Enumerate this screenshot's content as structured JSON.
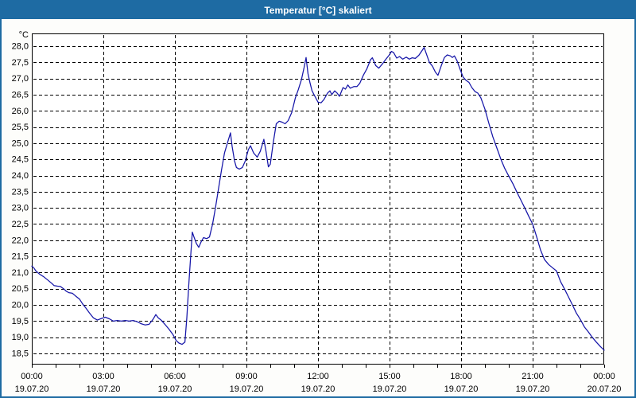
{
  "window": {
    "title": "Temperatur [°C] skaliert"
  },
  "colors": {
    "titlebar_bg": "#1e6ba3",
    "window_border": "#1e6ba3",
    "title_text": "#ffffff",
    "content_bg": "#fdfdfb",
    "plot_bg": "#ffffff",
    "grid": "#000000",
    "axis": "#000000",
    "tick_text": "#000000",
    "line": "#1515a8"
  },
  "chart_data": {
    "type": "line",
    "title": "Temperatur [°C] skaliert",
    "y_unit": "°C",
    "grid": "dashed",
    "legend": "none",
    "y_axis": {
      "max": 28.0,
      "min": 18.5,
      "step": 0.5,
      "tick_labels": [
        "28,0",
        "27,5",
        "27,0",
        "26,5",
        "26,0",
        "25,5",
        "25,0",
        "24,5",
        "24,0",
        "23,5",
        "23,0",
        "22,5",
        "22,0",
        "21,5",
        "21,0",
        "20,5",
        "20,0",
        "19,5",
        "19,0",
        "18,5"
      ]
    },
    "x_axis": {
      "min_hour": 0,
      "max_hour": 24,
      "major_step_hours": 3,
      "minor_step_hours": 1,
      "ticks": [
        {
          "hour": 0,
          "time": "00:00",
          "date": "19.07.20"
        },
        {
          "hour": 3,
          "time": "03:00",
          "date": "19.07.20"
        },
        {
          "hour": 6,
          "time": "06:00",
          "date": "19.07.20"
        },
        {
          "hour": 9,
          "time": "09:00",
          "date": "19.07.20"
        },
        {
          "hour": 12,
          "time": "12:00",
          "date": "19.07.20"
        },
        {
          "hour": 15,
          "time": "15:00",
          "date": "19.07.20"
        },
        {
          "hour": 18,
          "time": "18:00",
          "date": "19.07.20"
        },
        {
          "hour": 21,
          "time": "21:00",
          "date": "19.07.20"
        },
        {
          "hour": 24,
          "time": "00:00",
          "date": "20.07.20"
        }
      ]
    },
    "series": [
      {
        "name": "Temperatur",
        "color": "#1515a8",
        "points": [
          [
            0,
            21.2
          ],
          [
            0.08,
            21.15
          ],
          [
            0.17,
            21.05
          ],
          [
            0.33,
            20.95
          ],
          [
            0.5,
            20.87
          ],
          [
            0.67,
            20.77
          ],
          [
            0.83,
            20.67
          ],
          [
            0.93,
            20.6
          ],
          [
            1.08,
            20.58
          ],
          [
            1.2,
            20.57
          ],
          [
            1.33,
            20.5
          ],
          [
            1.45,
            20.42
          ],
          [
            1.55,
            20.38
          ],
          [
            1.7,
            20.36
          ],
          [
            1.83,
            20.28
          ],
          [
            2,
            20.18
          ],
          [
            2.13,
            20.03
          ],
          [
            2.25,
            19.92
          ],
          [
            2.42,
            19.75
          ],
          [
            2.58,
            19.6
          ],
          [
            2.75,
            19.53
          ],
          [
            2.92,
            19.58
          ],
          [
            3.08,
            19.62
          ],
          [
            3.25,
            19.57
          ],
          [
            3.42,
            19.5
          ],
          [
            3.58,
            19.52
          ],
          [
            3.75,
            19.5
          ],
          [
            3.92,
            19.52
          ],
          [
            4.08,
            19.5
          ],
          [
            4.25,
            19.52
          ],
          [
            4.42,
            19.48
          ],
          [
            4.58,
            19.42
          ],
          [
            4.75,
            19.38
          ],
          [
            4.92,
            19.4
          ],
          [
            5.08,
            19.55
          ],
          [
            5.2,
            19.7
          ],
          [
            5.3,
            19.6
          ],
          [
            5.42,
            19.53
          ],
          [
            5.58,
            19.4
          ],
          [
            5.75,
            19.25
          ],
          [
            5.92,
            19.08
          ],
          [
            6.05,
            18.9
          ],
          [
            6.17,
            18.82
          ],
          [
            6.3,
            18.78
          ],
          [
            6.42,
            18.85
          ],
          [
            6.5,
            19.6
          ],
          [
            6.58,
            20.6
          ],
          [
            6.67,
            21.6
          ],
          [
            6.73,
            22.25
          ],
          [
            6.8,
            22.1
          ],
          [
            6.9,
            21.9
          ],
          [
            7,
            21.78
          ],
          [
            7.1,
            21.95
          ],
          [
            7.2,
            22.08
          ],
          [
            7.33,
            22.05
          ],
          [
            7.45,
            22.1
          ],
          [
            7.58,
            22.5
          ],
          [
            7.7,
            23
          ],
          [
            7.83,
            23.6
          ],
          [
            7.95,
            24.15
          ],
          [
            8.08,
            24.7
          ],
          [
            8.2,
            25
          ],
          [
            8.33,
            25.32
          ],
          [
            8.4,
            24.9
          ],
          [
            8.5,
            24.45
          ],
          [
            8.58,
            24.25
          ],
          [
            8.7,
            24.2
          ],
          [
            8.83,
            24.25
          ],
          [
            8.95,
            24.45
          ],
          [
            9.08,
            24.8
          ],
          [
            9.17,
            24.92
          ],
          [
            9.3,
            24.7
          ],
          [
            9.45,
            24.57
          ],
          [
            9.58,
            24.75
          ],
          [
            9.73,
            25.12
          ],
          [
            9.82,
            24.75
          ],
          [
            9.92,
            24.27
          ],
          [
            10,
            24.35
          ],
          [
            10.12,
            25
          ],
          [
            10.25,
            25.6
          ],
          [
            10.37,
            25.68
          ],
          [
            10.5,
            25.65
          ],
          [
            10.62,
            25.6
          ],
          [
            10.75,
            25.7
          ],
          [
            10.9,
            25.95
          ],
          [
            11.05,
            26.4
          ],
          [
            11.17,
            26.65
          ],
          [
            11.3,
            26.95
          ],
          [
            11.42,
            27.35
          ],
          [
            11.5,
            27.65
          ],
          [
            11.58,
            27.15
          ],
          [
            11.67,
            26.85
          ],
          [
            11.75,
            26.62
          ],
          [
            11.87,
            26.45
          ],
          [
            12,
            26.27
          ],
          [
            12.13,
            26.25
          ],
          [
            12.25,
            26.35
          ],
          [
            12.4,
            26.55
          ],
          [
            12.5,
            26.62
          ],
          [
            12.58,
            26.5
          ],
          [
            12.7,
            26.62
          ],
          [
            12.8,
            26.55
          ],
          [
            12.9,
            26.45
          ],
          [
            13.05,
            26.72
          ],
          [
            13.15,
            26.67
          ],
          [
            13.25,
            26.8
          ],
          [
            13.35,
            26.7
          ],
          [
            13.5,
            26.75
          ],
          [
            13.63,
            26.75
          ],
          [
            13.75,
            26.85
          ],
          [
            13.9,
            27.1
          ],
          [
            14.05,
            27.3
          ],
          [
            14.2,
            27.58
          ],
          [
            14.28,
            27.64
          ],
          [
            14.42,
            27.4
          ],
          [
            14.55,
            27.32
          ],
          [
            14.7,
            27.45
          ],
          [
            14.85,
            27.6
          ],
          [
            15,
            27.74
          ],
          [
            15.08,
            27.84
          ],
          [
            15.17,
            27.8
          ],
          [
            15.3,
            27.63
          ],
          [
            15.42,
            27.68
          ],
          [
            15.55,
            27.6
          ],
          [
            15.7,
            27.66
          ],
          [
            15.83,
            27.6
          ],
          [
            15.95,
            27.64
          ],
          [
            16.08,
            27.62
          ],
          [
            16.23,
            27.72
          ],
          [
            16.35,
            27.85
          ],
          [
            16.45,
            27.96
          ],
          [
            16.55,
            27.75
          ],
          [
            16.67,
            27.5
          ],
          [
            16.8,
            27.38
          ],
          [
            16.92,
            27.2
          ],
          [
            17.03,
            27.1
          ],
          [
            17.17,
            27.4
          ],
          [
            17.3,
            27.65
          ],
          [
            17.42,
            27.73
          ],
          [
            17.55,
            27.7
          ],
          [
            17.63,
            27.65
          ],
          [
            17.72,
            27.7
          ],
          [
            17.83,
            27.55
          ],
          [
            17.95,
            27.3
          ],
          [
            18.08,
            27.05
          ],
          [
            18.2,
            26.95
          ],
          [
            18.33,
            26.88
          ],
          [
            18.45,
            26.72
          ],
          [
            18.58,
            26.6
          ],
          [
            18.7,
            26.55
          ],
          [
            18.83,
            26.4
          ],
          [
            19,
            26.05
          ],
          [
            19.17,
            25.6
          ],
          [
            19.33,
            25.2
          ],
          [
            19.5,
            24.85
          ],
          [
            19.67,
            24.5
          ],
          [
            19.83,
            24.22
          ],
          [
            20,
            23.98
          ],
          [
            20.17,
            23.75
          ],
          [
            20.33,
            23.5
          ],
          [
            20.5,
            23.25
          ],
          [
            20.67,
            23
          ],
          [
            20.83,
            22.75
          ],
          [
            21,
            22.5
          ],
          [
            21.17,
            22.1
          ],
          [
            21.33,
            21.7
          ],
          [
            21.5,
            21.4
          ],
          [
            21.67,
            21.25
          ],
          [
            21.83,
            21.15
          ],
          [
            22,
            21.05
          ],
          [
            22.17,
            20.72
          ],
          [
            22.33,
            20.5
          ],
          [
            22.5,
            20.25
          ],
          [
            22.67,
            20
          ],
          [
            22.83,
            19.75
          ],
          [
            23,
            19.55
          ],
          [
            23.17,
            19.32
          ],
          [
            23.33,
            19.17
          ],
          [
            23.5,
            19
          ],
          [
            23.67,
            18.85
          ],
          [
            23.83,
            18.72
          ],
          [
            24,
            18.6
          ]
        ]
      }
    ]
  }
}
